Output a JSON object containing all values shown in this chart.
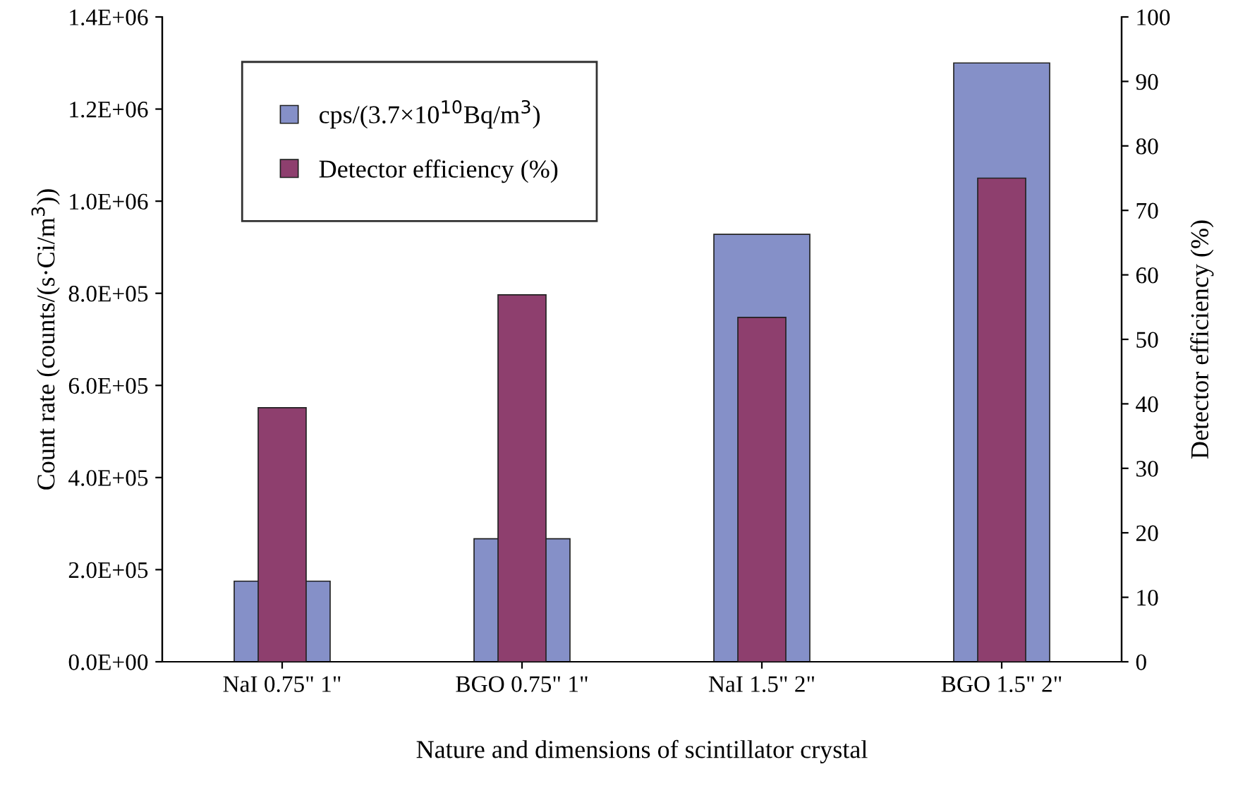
{
  "chart_data": {
    "type": "bar",
    "xlabel": "Nature and dimensions of scintillator crystal",
    "ylabel": "Count rate (counts/(s·Ci/m$^{3}$))",
    "y2label": "Detector efficiency (%)",
    "categories": [
      "NaI 0.75\" 1\"",
      "BGO 0.75\" 1\"",
      "NaI 1.5\" 2\"",
      "BGO 1.5\" 2\""
    ],
    "series": [
      {
        "name": "cps/(3.7×10$^{10}$Bq/m$^{3}$)",
        "color": "#8590c8",
        "values": [
          175000,
          267000,
          928000,
          1300000
        ]
      },
      {
        "name": "Detector efficiency (%)",
        "color": "#8e3f6e",
        "values": [
          39.4,
          56.9,
          53.4,
          75
        ],
        "axis": "y2"
      }
    ],
    "ylim": [
      0,
      1400000
    ],
    "yticks": [
      {
        "value": 0,
        "label": "0.0E+00"
      },
      {
        "value": 200000,
        "label": "2.0E+05"
      },
      {
        "value": 400000,
        "label": "4.0E+05"
      },
      {
        "value": 600000,
        "label": "6.0E+05"
      },
      {
        "value": 800000,
        "label": "8.0E+05"
      },
      {
        "value": 1000000,
        "label": "1.0E+06"
      },
      {
        "value": 1200000,
        "label": "1.2E+06"
      },
      {
        "value": 1400000,
        "label": "1.4E+06"
      }
    ],
    "y2lim": [
      0,
      100
    ],
    "y2ticks": [
      0,
      10,
      20,
      30,
      40,
      50,
      60,
      70,
      80,
      90,
      100
    ],
    "grid": false,
    "legend": "top left"
  }
}
